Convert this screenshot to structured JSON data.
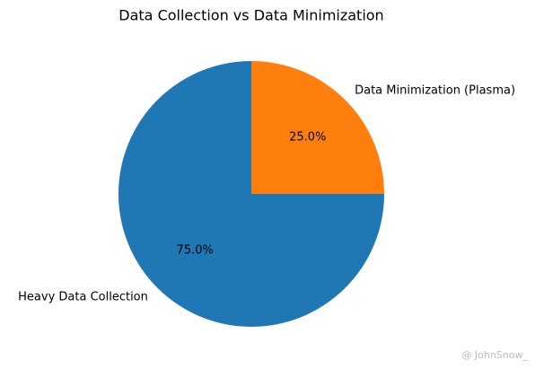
{
  "chart_data": {
    "type": "pie",
    "title": "Data Collection vs Data Minimization",
    "categories": [
      "Heavy Data Collection",
      "Data Minimization (Plasma)"
    ],
    "values": [
      75,
      25
    ],
    "value_labels": [
      "75.0%",
      "25.0%"
    ],
    "colors": [
      "#1f77b4",
      "#ff7f0e"
    ],
    "start_angle": 90,
    "counterclockwise": true
  },
  "watermark": "@ JohnSnow_"
}
